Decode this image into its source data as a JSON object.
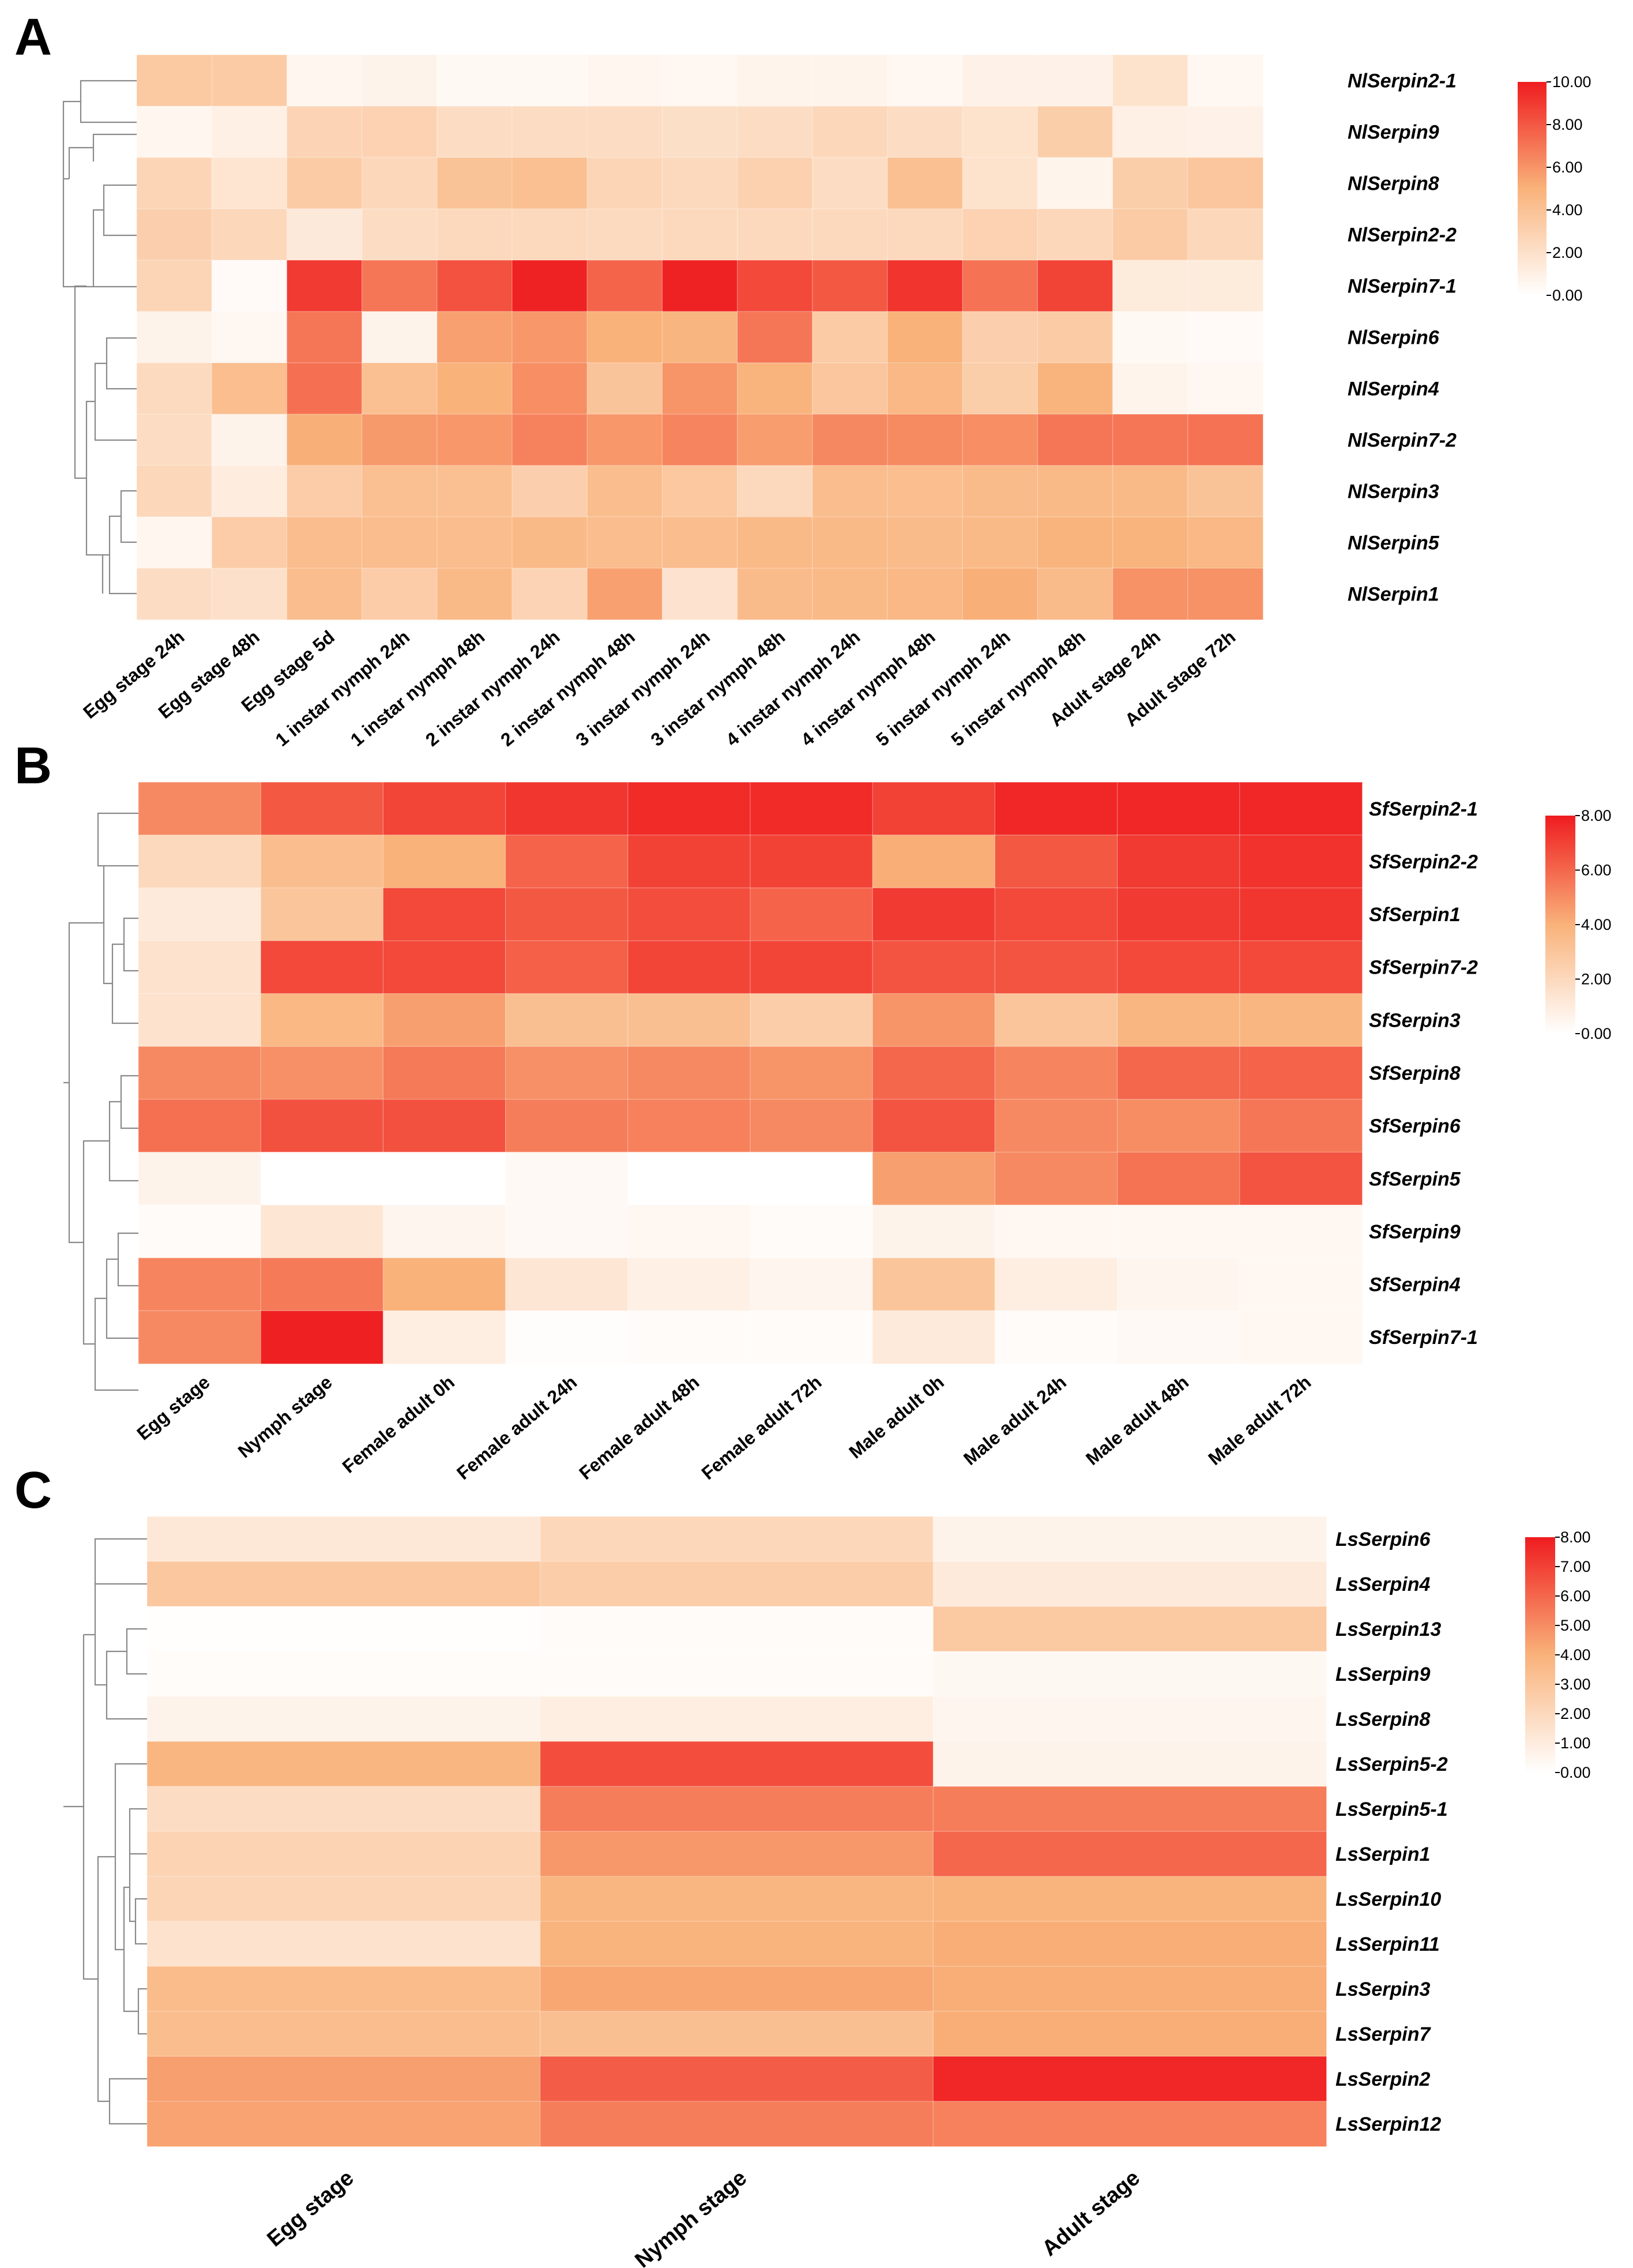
{
  "chart_data": [
    {
      "type": "heatmap",
      "panel": "A",
      "rows": [
        "NlSerpin2-1",
        "NlSerpin9",
        "NlSerpin8",
        "NlSerpin2-2",
        "NlSerpin7-1",
        "NlSerpin6",
        "NlSerpin4",
        "NlSerpin7-2",
        "NlSerpin3",
        "NlSerpin5",
        "NlSerpin1"
      ],
      "columns": [
        "Egg stage 24h",
        "Egg stage 48h",
        "Egg stage 5d",
        "1 instar nymph 24h",
        "1 instar nymph 48h",
        "2 instar nymph 24h",
        "2 instar nymph 48h",
        "3 instar nymph 24h",
        "3 instar nymph 48h",
        "4 instar nymph 24h",
        "4 instar nymph 48h",
        "5 instar nymph 24h",
        "5 instar nymph 48h",
        "Adult stage  24h",
        "Adult stage  72h"
      ],
      "values": [
        [
          3.5,
          3.4,
          0.6,
          0.8,
          0.4,
          0.4,
          0.6,
          0.5,
          0.7,
          0.7,
          0.5,
          0.9,
          0.9,
          1.9,
          0.5
        ],
        [
          0.6,
          1.0,
          2.8,
          2.9,
          2.2,
          2.3,
          2.3,
          2.1,
          2.2,
          2.6,
          2.2,
          1.9,
          3.2,
          1.0,
          0.9
        ],
        [
          2.7,
          1.7,
          3.4,
          2.6,
          3.9,
          4.1,
          2.7,
          2.5,
          3.0,
          2.2,
          4.1,
          1.9,
          0.7,
          3.2,
          3.7
        ],
        [
          3.1,
          2.6,
          1.4,
          2.2,
          2.5,
          2.5,
          2.4,
          2.5,
          2.5,
          2.5,
          2.5,
          2.9,
          2.6,
          3.4,
          2.6
        ],
        [
          2.7,
          0.3,
          9.0,
          7.0,
          8.2,
          9.8,
          7.6,
          9.8,
          8.5,
          8.0,
          9.2,
          7.1,
          8.7,
          1.3,
          1.3
        ],
        [
          0.8,
          0.5,
          7.0,
          0.8,
          5.6,
          5.9,
          5.0,
          4.8,
          7.0,
          3.4,
          5.0,
          3.1,
          3.4,
          0.4,
          0.3
        ],
        [
          2.4,
          4.2,
          7.2,
          4.1,
          5.0,
          6.2,
          3.8,
          6.0,
          4.9,
          3.7,
          4.6,
          3.2,
          4.9,
          0.7,
          0.5
        ],
        [
          2.3,
          0.8,
          5.1,
          5.8,
          5.9,
          6.6,
          5.9,
          6.5,
          5.7,
          6.4,
          6.3,
          6.2,
          7.0,
          7.0,
          7.1
        ],
        [
          2.6,
          1.2,
          3.3,
          4.1,
          4.1,
          3.1,
          4.3,
          3.6,
          2.5,
          4.3,
          4.2,
          4.4,
          4.5,
          4.5,
          3.9
        ],
        [
          0.6,
          3.3,
          4.3,
          4.3,
          4.3,
          4.5,
          4.3,
          4.3,
          4.5,
          4.5,
          4.4,
          4.5,
          4.9,
          4.9,
          4.6
        ],
        [
          2.2,
          2.0,
          4.3,
          3.3,
          4.5,
          2.8,
          5.6,
          1.8,
          4.4,
          4.5,
          4.6,
          5.1,
          4.4,
          6.1,
          6.1
        ]
      ],
      "colorbar": {
        "min": 0,
        "max": 10,
        "ticks": [
          "0.00",
          "2.00",
          "4.00",
          "6.00",
          "8.00",
          "10.00"
        ]
      },
      "colors": {
        "low": "#ffffff",
        "mid": "#f9b27a",
        "high": "#ef1c1f"
      }
    },
    {
      "type": "heatmap",
      "panel": "B",
      "rows": [
        "SfSerpin2-1",
        "SfSerpin2-2",
        "SfSerpin1",
        "SfSerpin7-2",
        "SfSerpin3",
        "SfSerpin8",
        "SfSerpin6",
        "SfSerpin5",
        "SfSerpin9",
        "SfSerpin4",
        "SfSerpin7-1"
      ],
      "columns": [
        "Egg stage",
        "Nymph stage",
        "Female adult 0h",
        "Female adult 24h",
        "Female adult 48h",
        "Female adult 72h",
        "Male adult 0h",
        "Male adult 24h",
        "Male adult 48h",
        "Male adult 72h"
      ],
      "values": [
        [
          5.1,
          6.4,
          6.9,
          7.3,
          7.6,
          7.6,
          7.0,
          7.7,
          7.7,
          7.7
        ],
        [
          2.0,
          3.4,
          4.0,
          6.1,
          7.0,
          7.0,
          4.1,
          6.4,
          7.2,
          7.4
        ],
        [
          1.1,
          3.0,
          6.8,
          6.4,
          6.7,
          6.1,
          7.2,
          6.8,
          7.2,
          7.3
        ],
        [
          1.5,
          6.8,
          6.8,
          6.2,
          6.9,
          6.9,
          6.5,
          6.5,
          6.8,
          6.8
        ],
        [
          1.5,
          3.7,
          4.5,
          3.3,
          3.3,
          2.6,
          4.8,
          3.0,
          3.8,
          3.8
        ],
        [
          5.1,
          4.9,
          5.5,
          4.9,
          5.1,
          4.8,
          6.0,
          5.2,
          6.0,
          6.1
        ],
        [
          5.8,
          6.6,
          6.6,
          5.4,
          5.3,
          5.1,
          6.5,
          5.1,
          5.0,
          5.6
        ],
        [
          0.6,
          0.0,
          0.0,
          0.3,
          0.0,
          0.0,
          4.5,
          5.1,
          5.7,
          6.5
        ],
        [
          0.2,
          1.3,
          0.5,
          0.3,
          0.4,
          0.2,
          0.6,
          0.4,
          0.4,
          0.4
        ],
        [
          5.2,
          5.5,
          4.0,
          1.3,
          0.8,
          0.5,
          3.0,
          0.9,
          0.5,
          0.4
        ],
        [
          5.1,
          7.9,
          0.9,
          0.1,
          0.2,
          0.2,
          1.1,
          0.2,
          0.3,
          0.4
        ]
      ],
      "colorbar": {
        "min": 0,
        "max": 8,
        "ticks": [
          "0.00",
          "2.00",
          "4.00",
          "6.00",
          "8.00"
        ]
      },
      "colors": {
        "low": "#ffffff",
        "mid": "#f9b27a",
        "high": "#ef1c1f"
      }
    },
    {
      "type": "heatmap",
      "panel": "C",
      "rows": [
        "LsSerpin6",
        "LsSerpin4",
        "LsSerpin13",
        "LsSerpin9",
        "LsSerpin8",
        "LsSerpin5-2",
        "LsSerpin5-1",
        "LsSerpin1",
        "LsSerpin10",
        "LsSerpin11",
        "LsSerpin3",
        "LsSerpin7",
        "LsSerpin2",
        "LsSerpin12"
      ],
      "columns": [
        "Egg stage",
        "Nymph stage",
        "Adult  stage"
      ],
      "values": [
        [
          1.2,
          2.1,
          0.6
        ],
        [
          2.9,
          2.6,
          1.1
        ],
        [
          0.05,
          0.2,
          2.8
        ],
        [
          0.15,
          0.2,
          0.35
        ],
        [
          0.6,
          0.9,
          0.5
        ],
        [
          3.8,
          6.7,
          0.6
        ],
        [
          1.8,
          5.4,
          5.4
        ],
        [
          2.3,
          4.7,
          6.0
        ],
        [
          2.2,
          3.8,
          3.9
        ],
        [
          1.5,
          3.9,
          4.1
        ],
        [
          3.5,
          4.3,
          4.1
        ],
        [
          3.4,
          3.3,
          4.1
        ],
        [
          4.5,
          6.3,
          7.7
        ],
        [
          4.4,
          5.4,
          5.3
        ]
      ],
      "colorbar": {
        "min": 0,
        "max": 8,
        "ticks": [
          "0.00",
          "1.00",
          "2.00",
          "3.00",
          "4.00",
          "5.00",
          "6.00",
          "7.00",
          "8.00"
        ]
      },
      "colors": {
        "low": "#ffffff",
        "mid": "#f9b27a",
        "high": "#ef1c1f"
      }
    }
  ]
}
